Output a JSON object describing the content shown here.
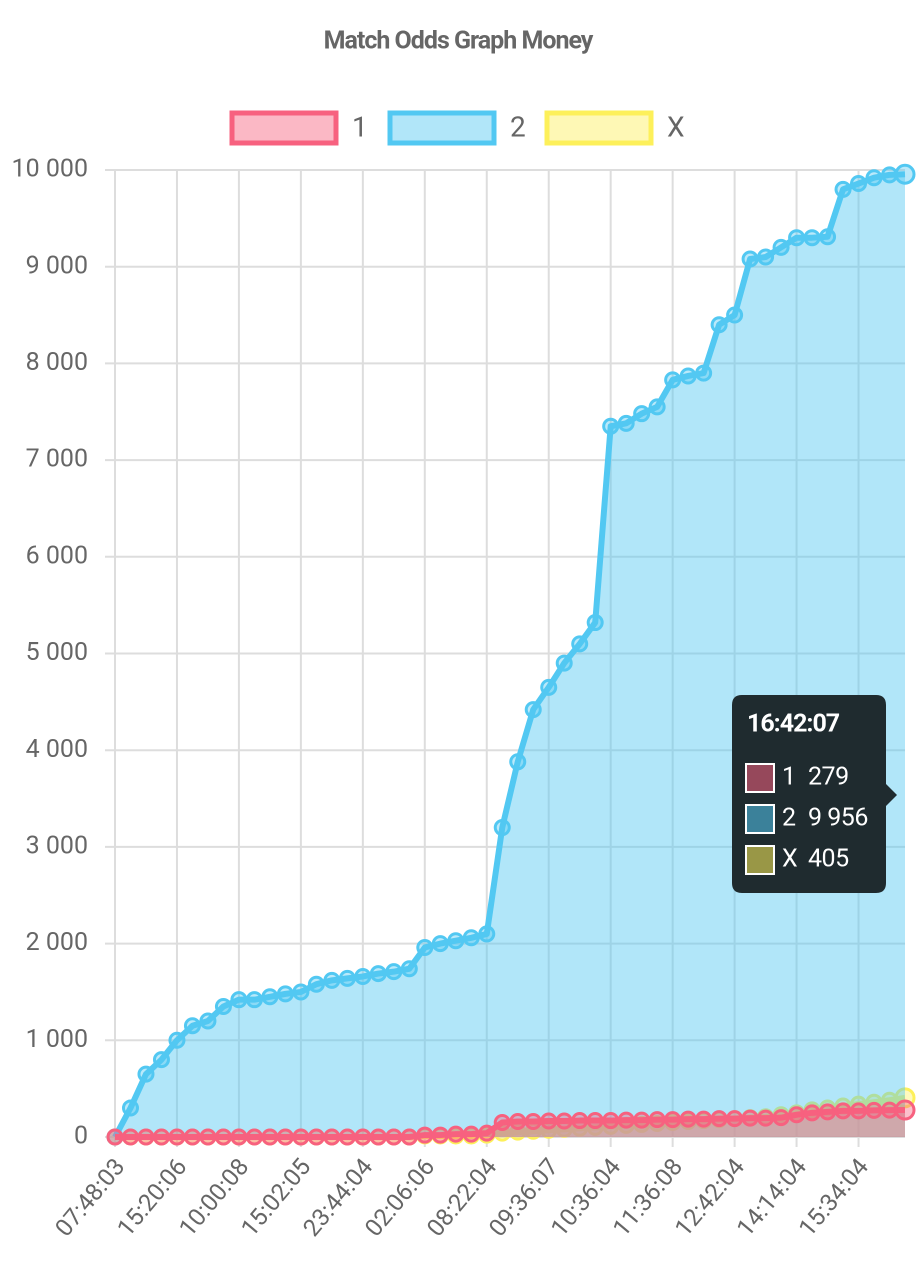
{
  "chart_data": {
    "type": "area",
    "title": "Match Odds Graph Money",
    "categories": [
      "07:48:03",
      null,
      null,
      null,
      "15:20:06",
      null,
      null,
      null,
      "10:00:08",
      null,
      null,
      null,
      "15:02:05",
      null,
      null,
      null,
      "23:44:04",
      null,
      null,
      null,
      "02:06:06",
      null,
      null,
      null,
      "08:22:04",
      null,
      null,
      null,
      "09:36:07",
      null,
      null,
      null,
      "10:36:04",
      null,
      null,
      null,
      "11:36:08",
      null,
      null,
      null,
      "12:42:04",
      null,
      null,
      null,
      "14:14:04",
      null,
      null,
      null,
      "15:34:04",
      null,
      null,
      "16:42:07"
    ],
    "series": [
      {
        "name": "1",
        "color": "#f7617f",
        "values": [
          0,
          0,
          0,
          0,
          0,
          0,
          0,
          0,
          0,
          0,
          0,
          0,
          0,
          0,
          0,
          0,
          0,
          0,
          0,
          0,
          20,
          20,
          30,
          30,
          40,
          150,
          160,
          160,
          165,
          165,
          170,
          170,
          170,
          175,
          175,
          180,
          180,
          185,
          185,
          190,
          190,
          195,
          195,
          200,
          230,
          250,
          260,
          270,
          270,
          275,
          278,
          279
        ]
      },
      {
        "name": "2",
        "color": "#52c8f2",
        "values": [
          0,
          300,
          650,
          800,
          1000,
          1150,
          1200,
          1350,
          1420,
          1420,
          1450,
          1480,
          1500,
          1580,
          1620,
          1640,
          1660,
          1690,
          1710,
          1740,
          1960,
          2000,
          2030,
          2060,
          2100,
          3200,
          3880,
          4420,
          4650,
          4900,
          5100,
          5320,
          7350,
          7380,
          7480,
          7550,
          7830,
          7870,
          7900,
          8400,
          8500,
          9080,
          9100,
          9200,
          9300,
          9300,
          9310,
          9800,
          9860,
          9920,
          9950,
          9956
        ],
        "value_labels": [
          null,
          null,
          null,
          null,
          null,
          null,
          null,
          null,
          null,
          null,
          null,
          null,
          null,
          null,
          null,
          null,
          null,
          null,
          null,
          null,
          null,
          null,
          null,
          null,
          null,
          null,
          null,
          null,
          null,
          null,
          null,
          null,
          null,
          null,
          null,
          null,
          null,
          null,
          null,
          null,
          null,
          null,
          null,
          null,
          null,
          null,
          null,
          null,
          null,
          null,
          null,
          "9 956"
        ]
      },
      {
        "name": "X",
        "color": "#fdf05a",
        "values": [
          0,
          0,
          0,
          0,
          0,
          0,
          0,
          0,
          0,
          0,
          0,
          0,
          0,
          0,
          0,
          0,
          0,
          0,
          0,
          0,
          10,
          10,
          10,
          10,
          20,
          40,
          50,
          60,
          70,
          80,
          90,
          100,
          110,
          120,
          130,
          140,
          150,
          160,
          170,
          180,
          190,
          200,
          210,
          230,
          250,
          280,
          300,
          320,
          340,
          360,
          380,
          405
        ]
      }
    ],
    "ylim": [
      0,
      10000
    ],
    "yticks": [
      0,
      {
        "value": 1000,
        "label": "1 000"
      },
      {
        "value": 2000,
        "label": "2 000"
      },
      {
        "value": 3000,
        "label": "3 000"
      },
      {
        "value": 4000,
        "label": "4 000"
      },
      {
        "value": 5000,
        "label": "5 000"
      },
      {
        "value": 6000,
        "label": "6 000"
      },
      {
        "value": 7000,
        "label": "7 000"
      },
      {
        "value": 8000,
        "label": "8 000"
      },
      {
        "value": 9000,
        "label": "9 000"
      },
      {
        "value": 10000,
        "label": "10 000"
      }
    ],
    "grid": true
  }
}
